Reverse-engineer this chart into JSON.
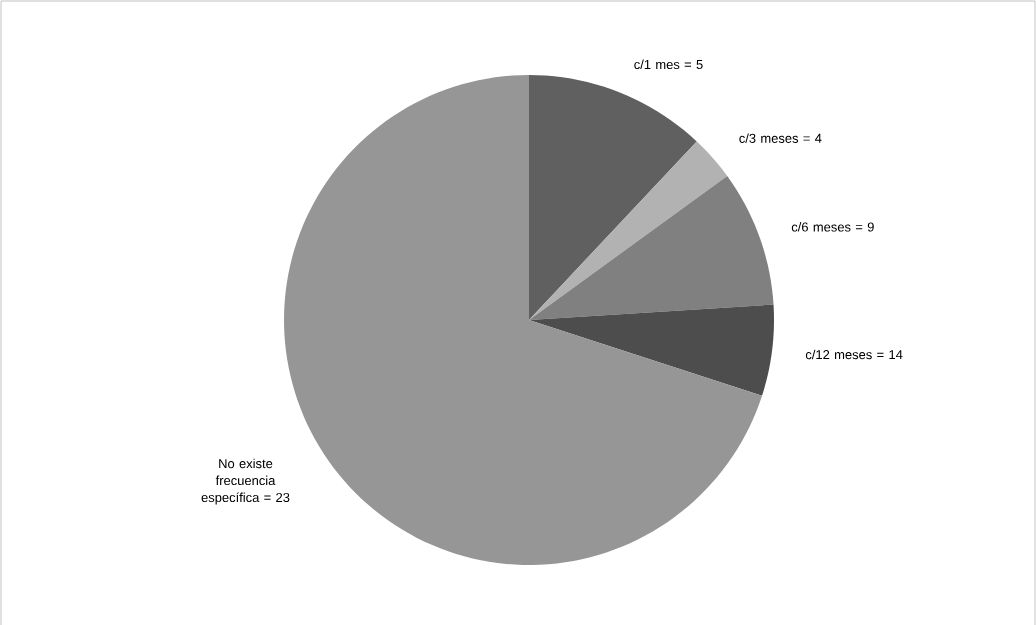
{
  "chart_data": {
    "type": "pie",
    "categories": [
      "c/1 mes = 5",
      "c/3 meses = 4",
      "c/6 meses = 9",
      "c/12 meses = 14",
      "No existe frecuencia específica = 23"
    ],
    "values": [
      12,
      3,
      9,
      6,
      70
    ],
    "colors": [
      "#606060",
      "#b2b2b2",
      "#808080",
      "#4d4d4d",
      "#969696"
    ]
  }
}
